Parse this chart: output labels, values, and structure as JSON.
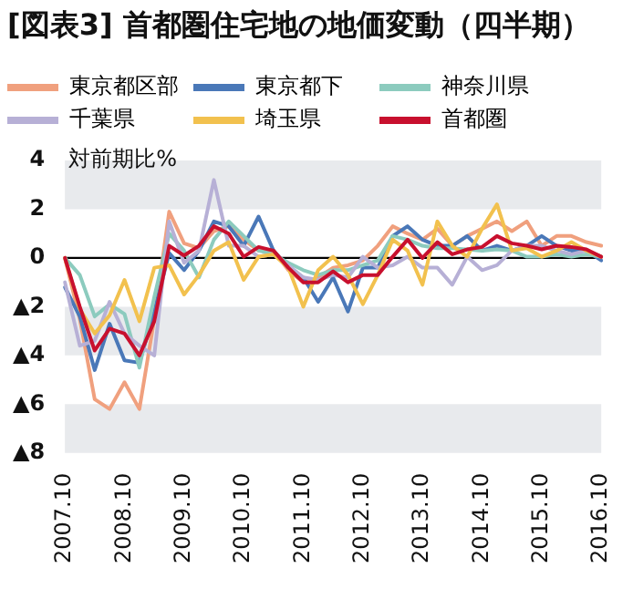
{
  "chart_data": {
    "type": "line",
    "title": "[図表3] 首都圏住宅地の地価変動（四半期）",
    "ylabel": "対前期比%",
    "categories": [
      "2007.10",
      null,
      null,
      null,
      "2008.10",
      null,
      null,
      null,
      "2009.10",
      null,
      null,
      null,
      "2010.10",
      null,
      null,
      null,
      "2011.10",
      null,
      null,
      null,
      "2012.10",
      null,
      null,
      null,
      "2013.10",
      null,
      null,
      null,
      "2014.10",
      null,
      null,
      null,
      "2015.10",
      null,
      null,
      null,
      "2016.10"
    ],
    "series": [
      {
        "name": "東京都区部",
        "color": "#f0a07e",
        "values": [
          0,
          -2.5,
          -5.8,
          -6.2,
          -5.1,
          -6.2,
          -2.5,
          1.9,
          0.6,
          0.4,
          1.1,
          1.3,
          0.75,
          0.3,
          0.3,
          -0.5,
          -1.0,
          -0.8,
          -0.4,
          -0.3,
          -0.1,
          0.5,
          1.3,
          1.0,
          0.75,
          1.2,
          0.5,
          0.9,
          1.2,
          1.5,
          1.1,
          1.5,
          0.5,
          0.9,
          0.9,
          0.65,
          0.5
        ]
      },
      {
        "name": "東京都下",
        "color": "#4a78b8",
        "values": [
          -1.2,
          -2.4,
          -4.6,
          -2.7,
          -4.2,
          -4.3,
          -2.2,
          0.2,
          -0.5,
          0.3,
          1.5,
          1.3,
          0.5,
          1.7,
          0.3,
          -0.4,
          -0.8,
          -1.8,
          -0.8,
          -2.2,
          -0.4,
          -0.4,
          0.9,
          1.3,
          0.75,
          0.5,
          0.5,
          0.9,
          0.3,
          0.5,
          0.3,
          0.5,
          0.9,
          0.5,
          0.3,
          0.3,
          -0.1
        ]
      },
      {
        "name": "神奈川県",
        "color": "#8ccbbe",
        "values": [
          0,
          -0.7,
          -2.4,
          -1.9,
          -2.3,
          -4.5,
          -1.6,
          1.0,
          0.3,
          -0.8,
          0.75,
          1.5,
          0.9,
          0.3,
          0.15,
          -0.2,
          -0.5,
          -0.7,
          -0.5,
          -0.5,
          -0.3,
          -0.1,
          0.9,
          0.75,
          0.5,
          0.4,
          0.4,
          0.35,
          0.3,
          0.35,
          0.3,
          0.05,
          0.05,
          0.15,
          0.05,
          0.15,
          0.05
        ]
      },
      {
        "name": "千葉県",
        "color": "#b7b0d6",
        "values": [
          -1.0,
          -3.6,
          -3.4,
          -1.8,
          -3.1,
          -3.6,
          -4.0,
          1.5,
          -0.2,
          0.3,
          3.2,
          0.5,
          0.5,
          0.05,
          0.15,
          -0.3,
          -0.8,
          -0.9,
          -0.7,
          -0.8,
          0.05,
          -0.4,
          -0.3,
          0.05,
          -0.4,
          -0.4,
          -1.1,
          0.05,
          -0.5,
          -0.3,
          0.3,
          0.5,
          0.5,
          0.3,
          0.15,
          0.3,
          0.05
        ]
      },
      {
        "name": "埼玉県",
        "color": "#f2c14e",
        "values": [
          0,
          -2.1,
          -3.1,
          -2.35,
          -0.9,
          -2.6,
          -0.4,
          -0.3,
          -1.5,
          -0.7,
          0.3,
          0.65,
          -0.9,
          0.05,
          0.15,
          -0.4,
          -2.0,
          -0.5,
          0.05,
          -0.7,
          -1.9,
          -0.7,
          0.75,
          0.3,
          -1.1,
          1.5,
          0.5,
          0.05,
          1.2,
          2.2,
          0.3,
          0.4,
          0.05,
          0.3,
          0.65,
          0.3,
          0.05
        ]
      },
      {
        "name": "首都圏",
        "color": "#c8102e",
        "values": [
          0,
          -2.0,
          -3.8,
          -2.9,
          -3.1,
          -4.0,
          -2.6,
          0.5,
          0.1,
          0.5,
          1.3,
          1.0,
          0.05,
          0.45,
          0.3,
          -0.4,
          -1.0,
          -1.0,
          -0.55,
          -1.0,
          -0.7,
          -0.7,
          0.05,
          0.75,
          0,
          0.65,
          0.15,
          0.35,
          0.45,
          0.9,
          0.6,
          0.5,
          0.35,
          0.5,
          0.45,
          0.35,
          0.05
        ]
      }
    ],
    "ylim": [
      -8,
      4
    ],
    "yticks": [
      4,
      2,
      0,
      {
        "value": -2,
        "label": "▲2"
      },
      {
        "value": -4,
        "label": "▲4"
      },
      {
        "value": -6,
        "label": "▲6"
      },
      {
        "value": -8,
        "label": "▲8"
      }
    ],
    "bands": [
      {
        "axis": "y",
        "from": 2,
        "to": 4,
        "color": "#e8eaed"
      },
      {
        "axis": "y",
        "from": -4,
        "to": -2,
        "color": "#e8eaed"
      },
      {
        "axis": "y",
        "from": -8,
        "to": -6,
        "color": "#e8eaed"
      }
    ],
    "ref_lines": [
      {
        "axis": "y",
        "value": 0,
        "color": "#000000"
      }
    ],
    "grid": false,
    "legend": "top",
    "marker": "none",
    "line_style": "solid"
  }
}
